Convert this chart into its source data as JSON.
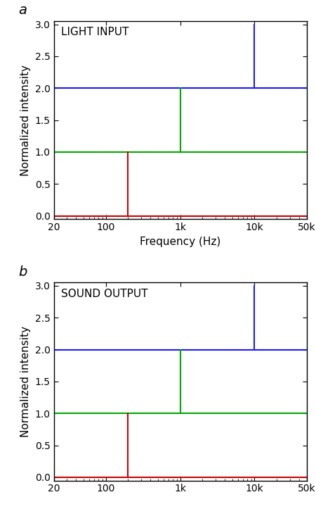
{
  "panels": [
    {
      "label": "a",
      "title": "LIGHT INPUT",
      "show_xlabel": true
    },
    {
      "label": "b",
      "title": "SOUND OUTPUT",
      "show_xlabel": false
    }
  ],
  "xlabel": "Frequency (Hz)",
  "ylabel": "Normalized intensity",
  "xmin": 20,
  "xmax": 50000,
  "ymin": -0.05,
  "ymax": 3.05,
  "yticks": [
    0.0,
    0.5,
    1.0,
    1.5,
    2.0,
    2.5,
    3.0
  ],
  "ytick_labels": [
    "0.0",
    "0.5",
    "1.0",
    "1.5",
    "2.0",
    "2.5",
    "3.0"
  ],
  "xtick_positions": [
    20,
    100,
    1000,
    10000,
    50000
  ],
  "xtick_labels": [
    "20",
    "100",
    "1k",
    "10k",
    "50k"
  ],
  "hlines": [
    {
      "y": 0.0,
      "color": "#cc0000",
      "lw": 1.5
    },
    {
      "y": 1.0,
      "color": "#00aa00",
      "lw": 1.5
    },
    {
      "y": 2.0,
      "color": "#1a1aff",
      "lw": 1.5
    }
  ],
  "vspikes": [
    {
      "x": 200,
      "y_base": 0.0,
      "y_top": 1.0,
      "color": "#cc0000",
      "lw": 1.5
    },
    {
      "x": 1000,
      "y_base": 1.0,
      "y_top": 2.0,
      "color": "#00aa00",
      "lw": 1.5
    },
    {
      "x": 10000,
      "y_base": 2.0,
      "y_top": 3.0,
      "color": "#1a1aff",
      "lw": 1.5
    }
  ],
  "fig_width": 4.5,
  "fig_height": 7.5,
  "panel_label_fontsize": 14,
  "title_fontsize": 11,
  "axis_label_fontsize": 11,
  "tick_fontsize": 10
}
